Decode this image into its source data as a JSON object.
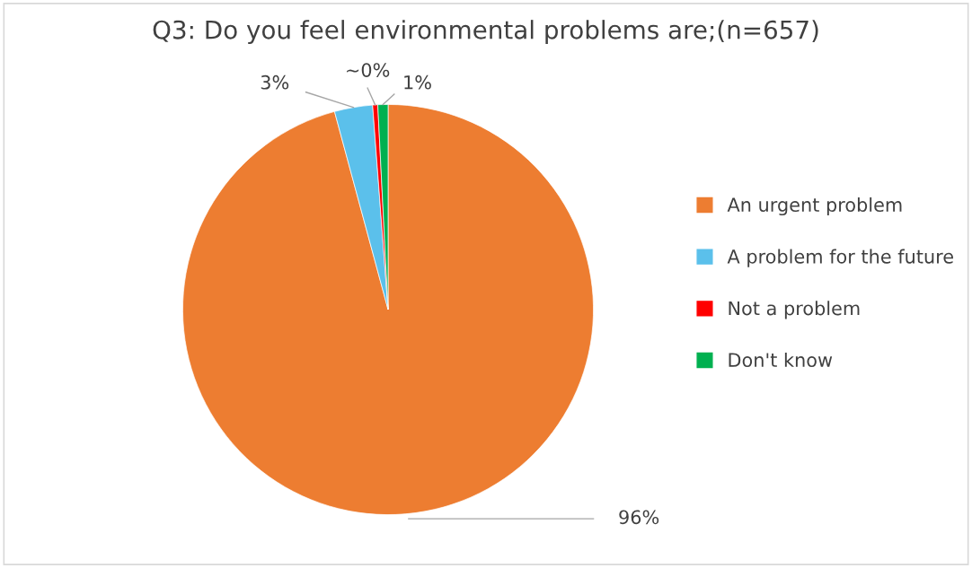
{
  "chart_data": {
    "type": "pie",
    "title": "Q3: Do you feel environmental problems are;(n=657)",
    "categories": [
      "An urgent problem",
      "A problem for the future",
      "Not a problem",
      "Don't know"
    ],
    "values": [
      95.8,
      3.0,
      0.4,
      0.8
    ],
    "value_labels": [
      "96%",
      "3%",
      "~0%",
      "1%"
    ],
    "colors": [
      "#ed7d31",
      "#5bc0eb",
      "#ff0000",
      "#00b050"
    ],
    "legend": "right"
  }
}
